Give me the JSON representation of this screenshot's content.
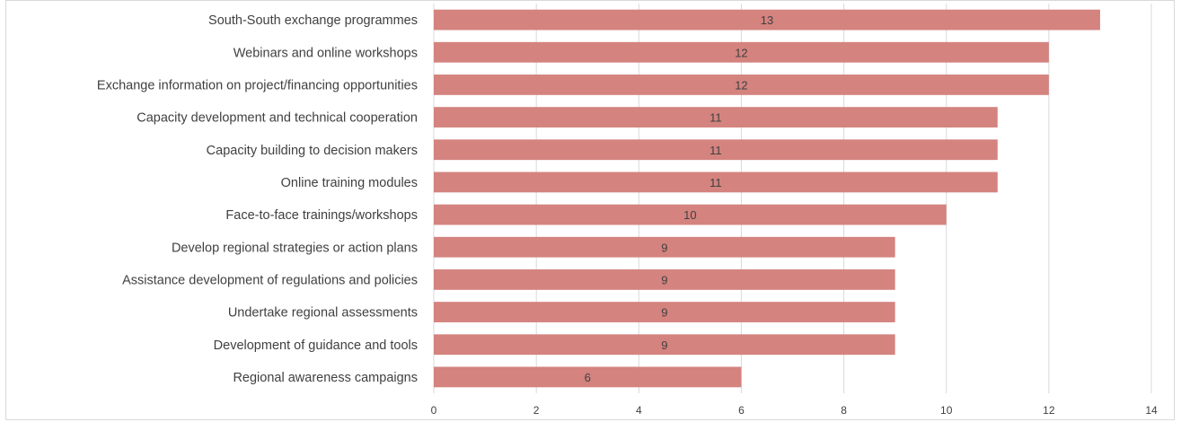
{
  "chart_data": {
    "type": "bar",
    "orientation": "horizontal",
    "categories": [
      "South-South exchange programmes",
      "Webinars and online workshops",
      "Exchange information on project/financing opportunities",
      "Capacity development and technical cooperation",
      "Capacity building to decision makers",
      "Online training modules",
      "Face-to-face trainings/workshops",
      "Develop regional strategies or action plans",
      "Assistance development of regulations and policies",
      "Undertake regional assessments",
      "Development of guidance and tools",
      "Regional awareness campaigns"
    ],
    "values": [
      13,
      12,
      12,
      11,
      11,
      11,
      10,
      9,
      9,
      9,
      9,
      6
    ],
    "xlim": [
      0,
      14
    ],
    "xticks": [
      0,
      2,
      4,
      6,
      8,
      10,
      12,
      14
    ],
    "grid": true,
    "legend": "none",
    "bar_color": "#d4837f",
    "grid_color": "#d9d9d9",
    "text_color": "#404040",
    "value_label_color": "#404040"
  }
}
